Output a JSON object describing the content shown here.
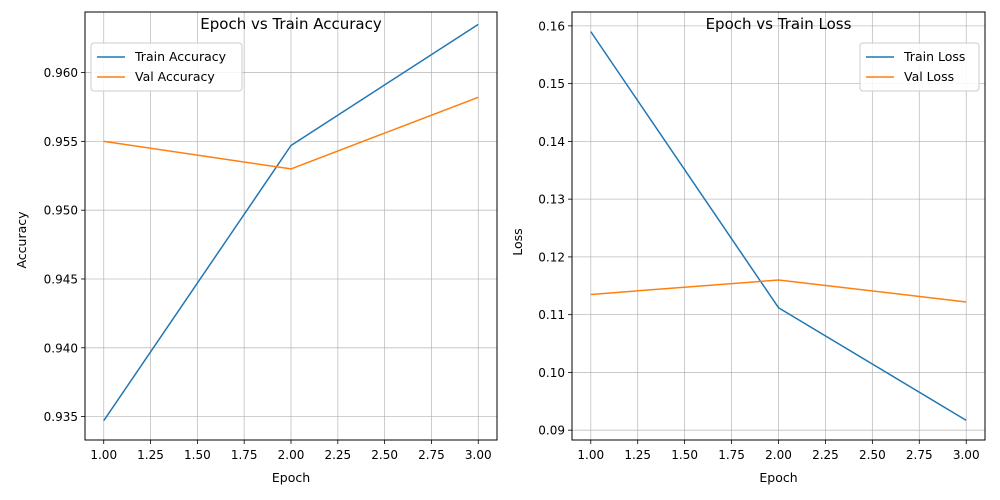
{
  "chart_data": [
    {
      "type": "line",
      "title": "Epoch vs Train Accuracy",
      "xlabel": "Epoch",
      "ylabel": "Accuracy",
      "xlim": [
        0.9,
        3.1
      ],
      "ylim": [
        0.9333,
        0.9644
      ],
      "xticks": [
        1.0,
        1.25,
        1.5,
        1.75,
        2.0,
        2.25,
        2.5,
        2.75,
        3.0
      ],
      "xtick_labels": [
        "1.00",
        "1.25",
        "1.50",
        "1.75",
        "2.00",
        "2.25",
        "2.50",
        "2.75",
        "3.00"
      ],
      "yticks": [
        0.935,
        0.94,
        0.945,
        0.95,
        0.955,
        0.96
      ],
      "ytick_labels": [
        "0.935",
        "0.940",
        "0.945",
        "0.950",
        "0.955",
        "0.960"
      ],
      "grid": true,
      "legend_position": "top-left",
      "x": [
        1,
        2,
        3
      ],
      "series": [
        {
          "name": "Train Accuracy",
          "color": "#1f77b4",
          "values": [
            0.9347,
            0.9547,
            0.9635
          ]
        },
        {
          "name": "Val Accuracy",
          "color": "#ff7f0e",
          "values": [
            0.955,
            0.953,
            0.9582
          ]
        }
      ]
    },
    {
      "type": "line",
      "title": "Epoch vs Train Loss",
      "xlabel": "Epoch",
      "ylabel": "Loss",
      "xlim": [
        0.9,
        3.1
      ],
      "ylim": [
        0.0883,
        0.1624
      ],
      "xticks": [
        1.0,
        1.25,
        1.5,
        1.75,
        2.0,
        2.25,
        2.5,
        2.75,
        3.0
      ],
      "xtick_labels": [
        "1.00",
        "1.25",
        "1.50",
        "1.75",
        "2.00",
        "2.25",
        "2.50",
        "2.75",
        "3.00"
      ],
      "yticks": [
        0.09,
        0.1,
        0.11,
        0.12,
        0.13,
        0.14,
        0.15,
        0.16
      ],
      "ytick_labels": [
        "0.09",
        "0.10",
        "0.11",
        "0.12",
        "0.13",
        "0.14",
        "0.15",
        "0.16"
      ],
      "grid": true,
      "legend_position": "top-right",
      "x": [
        1,
        2,
        3
      ],
      "series": [
        {
          "name": "Train Loss",
          "color": "#1f77b4",
          "values": [
            0.159,
            0.1112,
            0.0917
          ]
        },
        {
          "name": "Val Loss",
          "color": "#ff7f0e",
          "values": [
            0.1135,
            0.116,
            0.1122
          ]
        }
      ]
    }
  ]
}
